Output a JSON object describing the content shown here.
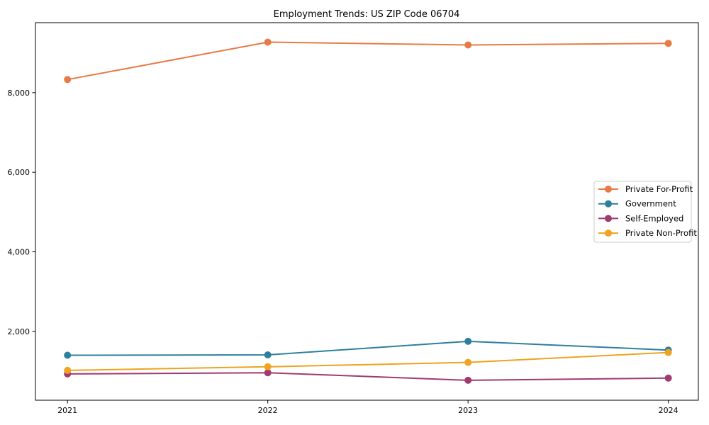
{
  "chart_data": {
    "type": "line",
    "title": "Employment Trends: US ZIP Code 06704",
    "xlabel": "",
    "ylabel": "",
    "x": [
      2021,
      2022,
      2023,
      2024
    ],
    "x_tick_labels": [
      "2021",
      "2022",
      "2023",
      "2024"
    ],
    "y_ticks": [
      {
        "value": 2000,
        "label": "2,000"
      },
      {
        "value": 4000,
        "label": "4,000"
      },
      {
        "value": 6000,
        "label": "6,000"
      },
      {
        "value": 8000,
        "label": "8,000"
      }
    ],
    "series": [
      {
        "name": "Private For-Profit",
        "color": "#e87a45",
        "values": [
          8330,
          9270,
          9200,
          9240
        ]
      },
      {
        "name": "Government",
        "color": "#2e7f9e",
        "values": [
          1400,
          1410,
          1750,
          1530
        ]
      },
      {
        "name": "Self-Employed",
        "color": "#a13a70",
        "values": [
          930,
          960,
          770,
          825
        ]
      },
      {
        "name": "Private Non-Profit",
        "color": "#efa320",
        "values": [
          1020,
          1110,
          1220,
          1470
        ]
      }
    ],
    "xlim": [
      2020.84,
      2024.15
    ],
    "ylim": [
      270,
      9760
    ],
    "grid": false,
    "legend_position": "center-right",
    "legend_border_color": "#cccccc",
    "axis_color": "#000000",
    "background_color": "#ffffff",
    "marker": "circle",
    "marker_radius": 5,
    "line_width": 2
  }
}
